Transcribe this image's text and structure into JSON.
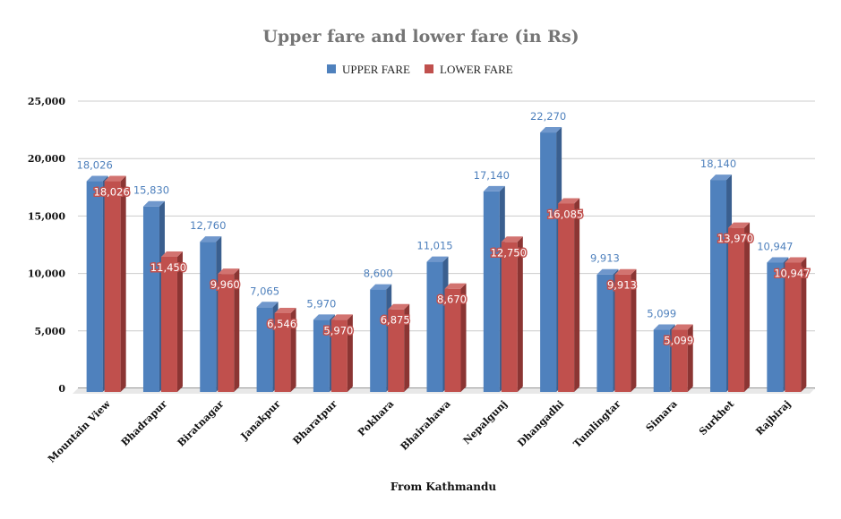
{
  "chart_data": {
    "type": "bar",
    "title": "Upper fare and lower fare (in Rs)",
    "xlabel": "From Kathmandu",
    "ylabel": "",
    "ylim": [
      0,
      25000
    ],
    "yticks": [
      "0",
      "5,000",
      "10,000",
      "15,000",
      "20,000",
      "25,000"
    ],
    "grid": true,
    "legend_position": "top",
    "categories": [
      "Mountain View",
      "Bhadrapur",
      "Biratnagar",
      "Janakpur",
      "Bharatpur",
      "Pokhara",
      "Bhairahawa",
      "Nepalgunj",
      "Dhangadhi",
      "Tumlingtar",
      "Simara",
      "Surkhet",
      "Rajbiraj"
    ],
    "series": [
      {
        "name": "UPPER FARE",
        "color": "#4f81bd",
        "values": [
          18026,
          15830,
          12760,
          7065,
          5970,
          8600,
          11015,
          17140,
          22270,
          9913,
          5099,
          18140,
          10947
        ],
        "labels": [
          "18,026",
          "15,830",
          "12,760",
          "7,065",
          "5,970",
          "8,600",
          "11,015",
          "17,140",
          "22,270",
          "9,913",
          "5,099",
          "18,140",
          "10,947"
        ]
      },
      {
        "name": "LOWER FARE",
        "color": "#c0504d",
        "values": [
          18026,
          11450,
          9960,
          6546,
          5970,
          6875,
          8670,
          12750,
          16085,
          9913,
          5099,
          13970,
          10947
        ],
        "labels": [
          "18,026",
          "11,450",
          "9,960",
          "6,546",
          "5,970",
          "6,875",
          "8,670",
          "12,750",
          "16,085",
          "9,913",
          "5,099",
          "13,970",
          "10,947"
        ]
      }
    ]
  }
}
